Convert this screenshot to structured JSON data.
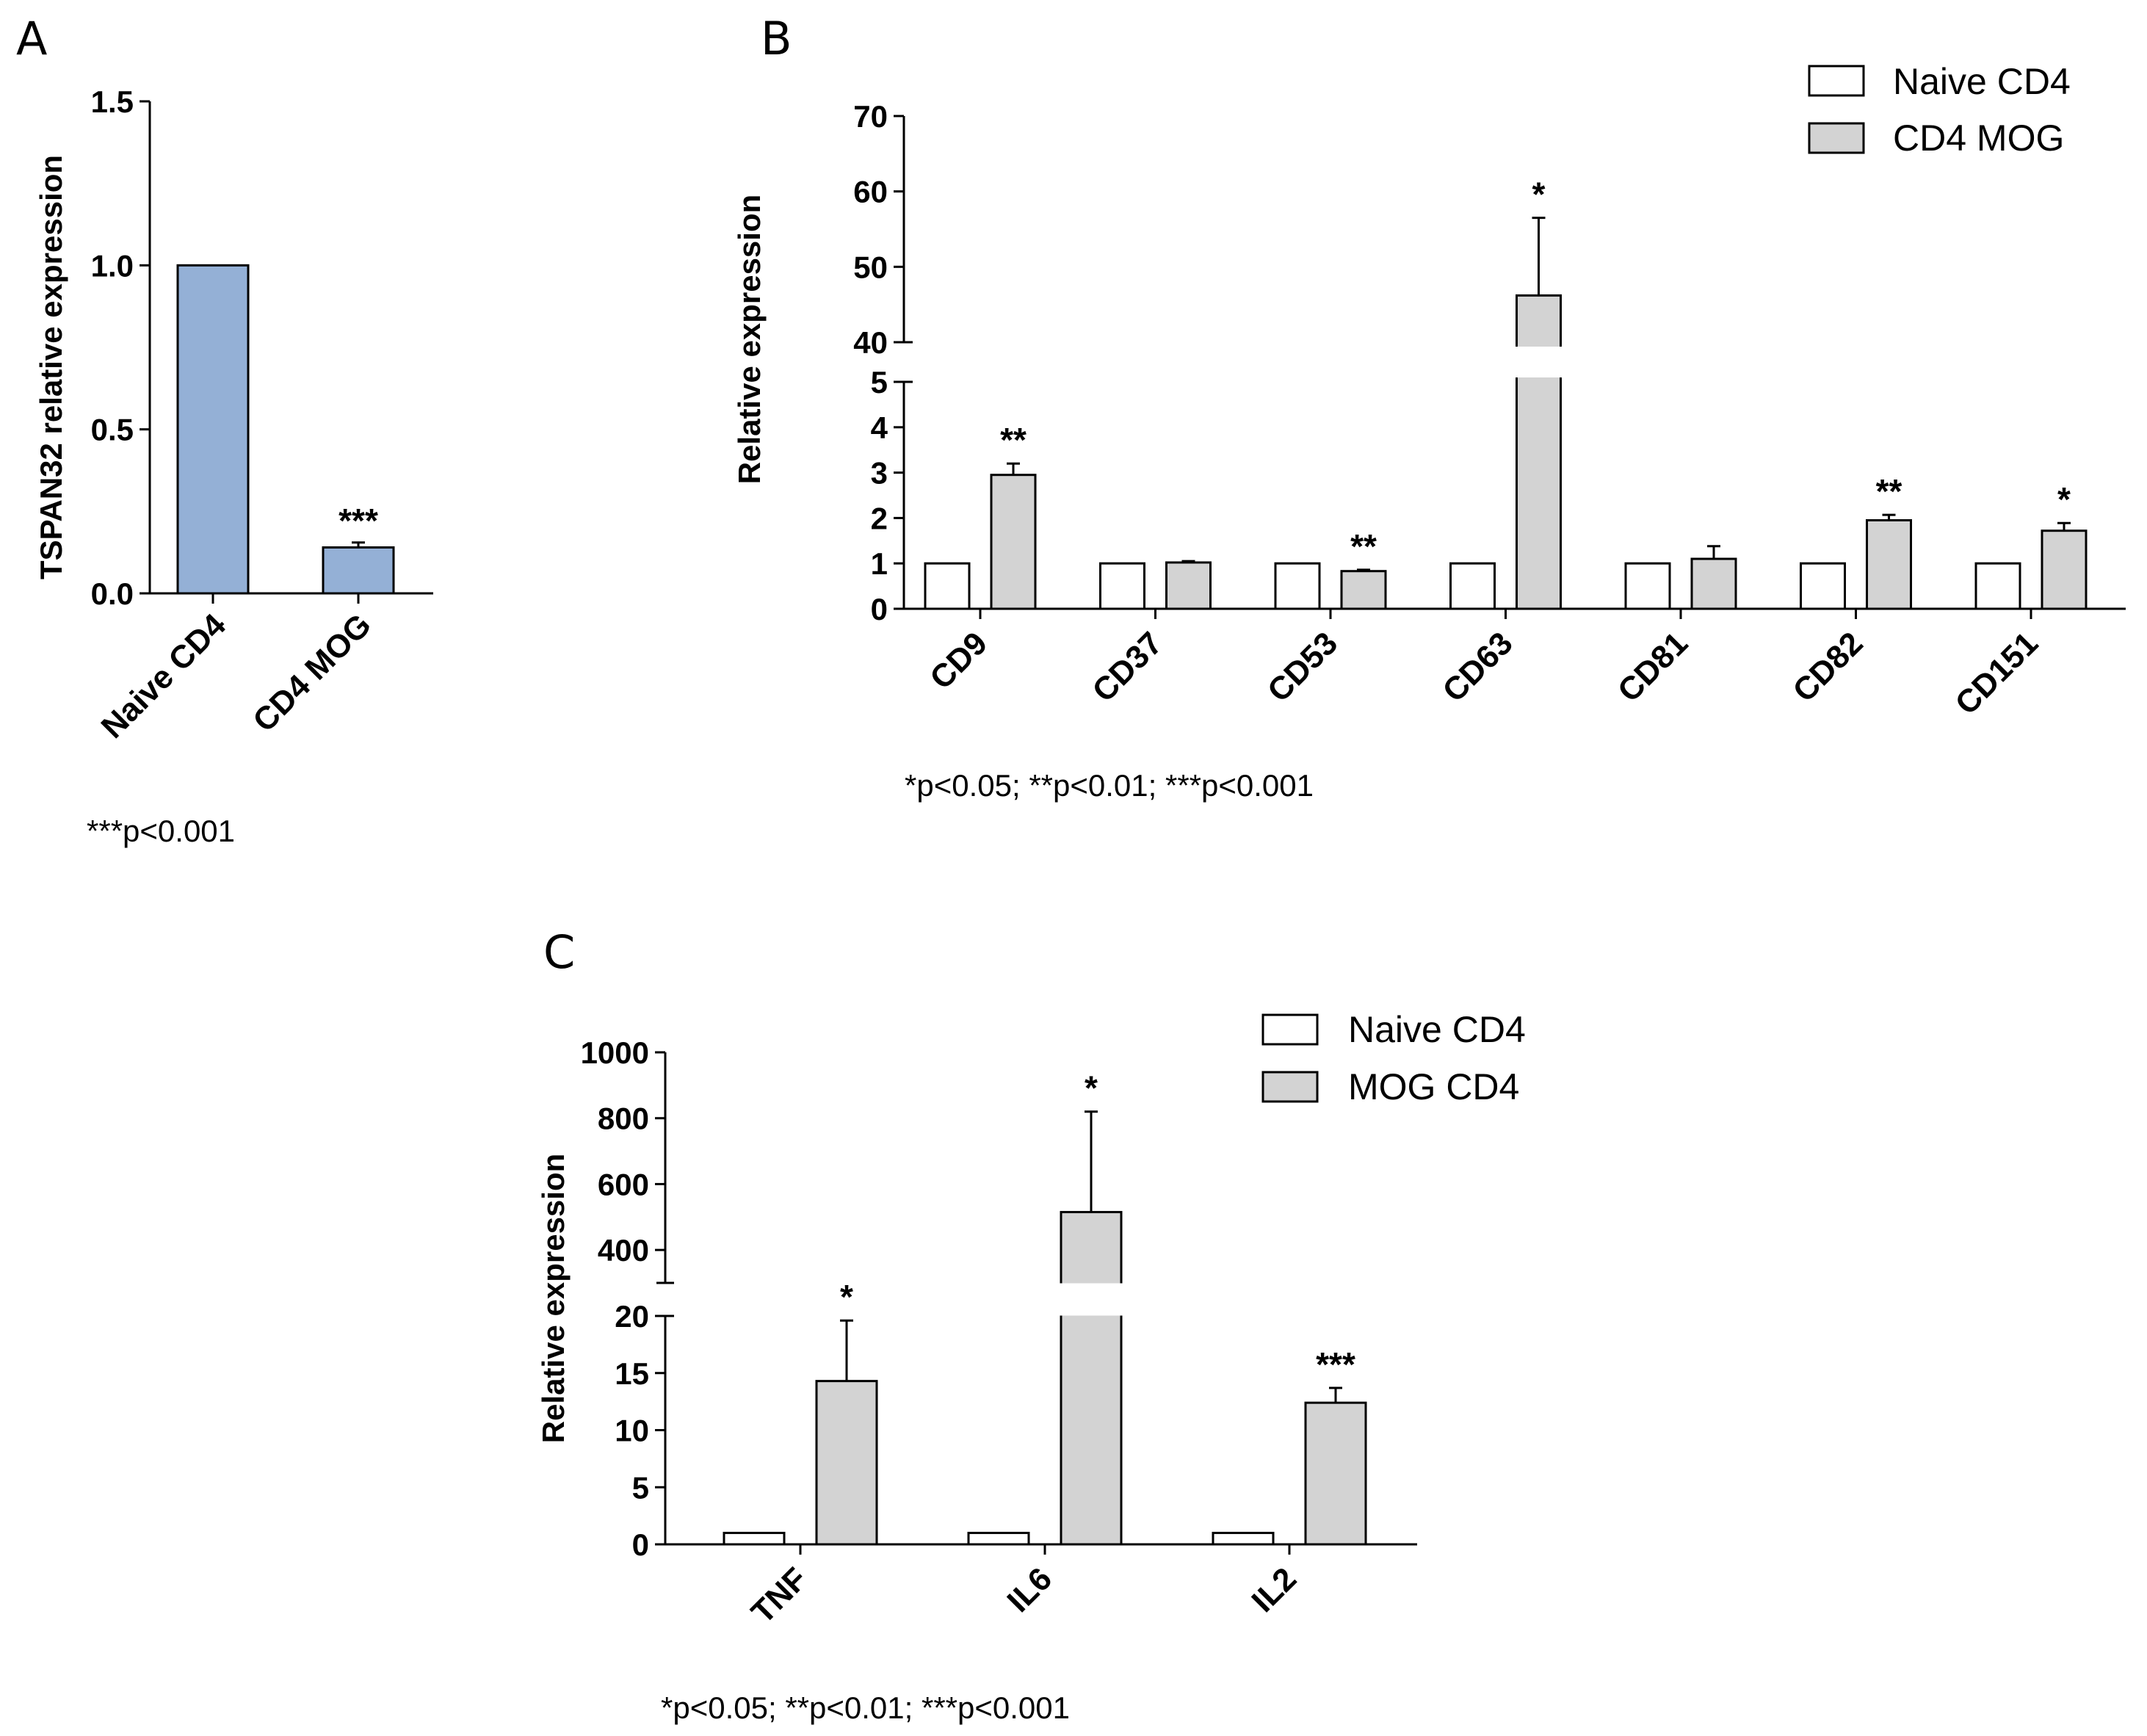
{
  "chart_data": [
    {
      "panel": "A",
      "type": "bar",
      "title": "",
      "xlabel": "",
      "ylabel": "TSPAN32 relative expression",
      "ylim": [
        0,
        1.5
      ],
      "yticks": [
        "0.0",
        "0.5",
        "1.0",
        "1.5"
      ],
      "categories": [
        "Naive CD4",
        "CD4 MOG"
      ],
      "values": [
        1.0,
        0.14
      ],
      "errors": [
        0,
        0.015
      ],
      "significance": [
        "",
        "***"
      ],
      "bar_color": "#94b0d6",
      "footnote": "***p<0.001"
    },
    {
      "panel": "B",
      "type": "bar",
      "title": "",
      "xlabel": "",
      "ylabel": "Relative expression",
      "ylim": [
        0,
        70
      ],
      "axis_break": [
        5,
        40
      ],
      "yticks_lower": [
        "0",
        "1",
        "2",
        "3",
        "4",
        "5"
      ],
      "yticks_upper": [
        "40",
        "50",
        "60",
        "70"
      ],
      "categories": [
        "CD9",
        "CD37",
        "CD53",
        "CD63",
        "CD81",
        "CD82",
        "CD151"
      ],
      "series": [
        {
          "name": "Naive CD4",
          "color": "#ffffff",
          "values": [
            1,
            1,
            1,
            1,
            1,
            1,
            1
          ],
          "errors": [
            0,
            0,
            0,
            0,
            0,
            0,
            0
          ]
        },
        {
          "name": "CD4 MOG",
          "color": "#d3d3d3",
          "values": [
            2.95,
            1.02,
            0.83,
            46.2,
            1.1,
            1.95,
            1.72
          ],
          "errors": [
            0.25,
            0.03,
            0.03,
            10.3,
            0.28,
            0.12,
            0.17
          ]
        }
      ],
      "significance": [
        "**",
        "",
        "**",
        "*",
        "",
        "**",
        "*"
      ],
      "legend": [
        "Naive CD4",
        "CD4 MOG"
      ],
      "legend_position": "top-right",
      "footnote": "*p<0.05; **p<0.01; ***p<0.001"
    },
    {
      "panel": "C",
      "type": "bar",
      "title": "",
      "xlabel": "",
      "ylabel": "Relative expression",
      "ylim": [
        0,
        1000
      ],
      "axis_break": [
        20,
        300
      ],
      "yticks_lower": [
        "0",
        "5",
        "10",
        "15",
        "20"
      ],
      "yticks_upper": [
        "400",
        "600",
        "800",
        "1000"
      ],
      "categories": [
        "TNF",
        "IL6",
        "IL2"
      ],
      "series": [
        {
          "name": "Naive CD4",
          "color": "#ffffff",
          "values": [
            1,
            1,
            1
          ],
          "errors": [
            0,
            0,
            0
          ]
        },
        {
          "name": "MOG CD4",
          "color": "#d3d3d3",
          "values": [
            14.3,
            515,
            12.4
          ],
          "errors": [
            5.3,
            305,
            1.3
          ]
        }
      ],
      "significance": [
        "*",
        "*",
        "***"
      ],
      "legend": [
        "Naive CD4",
        "MOG CD4"
      ],
      "legend_position": "top-right",
      "footnote": "*p<0.05; **p<0.01; ***p<0.001"
    }
  ]
}
